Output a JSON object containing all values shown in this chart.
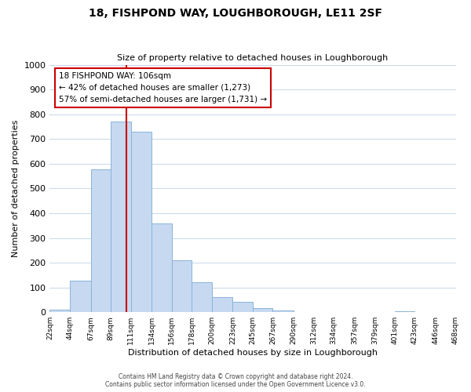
{
  "title": "18, FISHPOND WAY, LOUGHBOROUGH, LE11 2SF",
  "subtitle": "Size of property relative to detached houses in Loughborough",
  "xlabel": "Distribution of detached houses by size in Loughborough",
  "ylabel": "Number of detached properties",
  "bar_edges": [
    22,
    44,
    67,
    89,
    111,
    134,
    156,
    178,
    200,
    223,
    245,
    267,
    290,
    312,
    334,
    357,
    379,
    401,
    423,
    446,
    468
  ],
  "bar_heights": [
    10,
    128,
    578,
    770,
    730,
    360,
    210,
    120,
    60,
    42,
    15,
    8,
    0,
    0,
    0,
    0,
    0,
    3,
    0,
    0
  ],
  "bar_color": "#c6d9f1",
  "bar_edge_color": "#8ab4d8",
  "vline_x": 106,
  "vline_color": "#cc0000",
  "ylim": [
    0,
    1000
  ],
  "tick_labels": [
    "22sqm",
    "44sqm",
    "67sqm",
    "89sqm",
    "111sqm",
    "134sqm",
    "156sqm",
    "178sqm",
    "200sqm",
    "223sqm",
    "245sqm",
    "267sqm",
    "290sqm",
    "312sqm",
    "334sqm",
    "357sqm",
    "379sqm",
    "401sqm",
    "423sqm",
    "446sqm",
    "468sqm"
  ],
  "annotation_text": "18 FISHPOND WAY: 106sqm\n← 42% of detached houses are smaller (1,273)\n57% of semi-detached houses are larger (1,731) →",
  "annotation_box_color": "#ffffff",
  "annotation_box_edge": "#cc0000",
  "footer1": "Contains HM Land Registry data © Crown copyright and database right 2024.",
  "footer2": "Contains public sector information licensed under the Open Government Licence v3.0."
}
